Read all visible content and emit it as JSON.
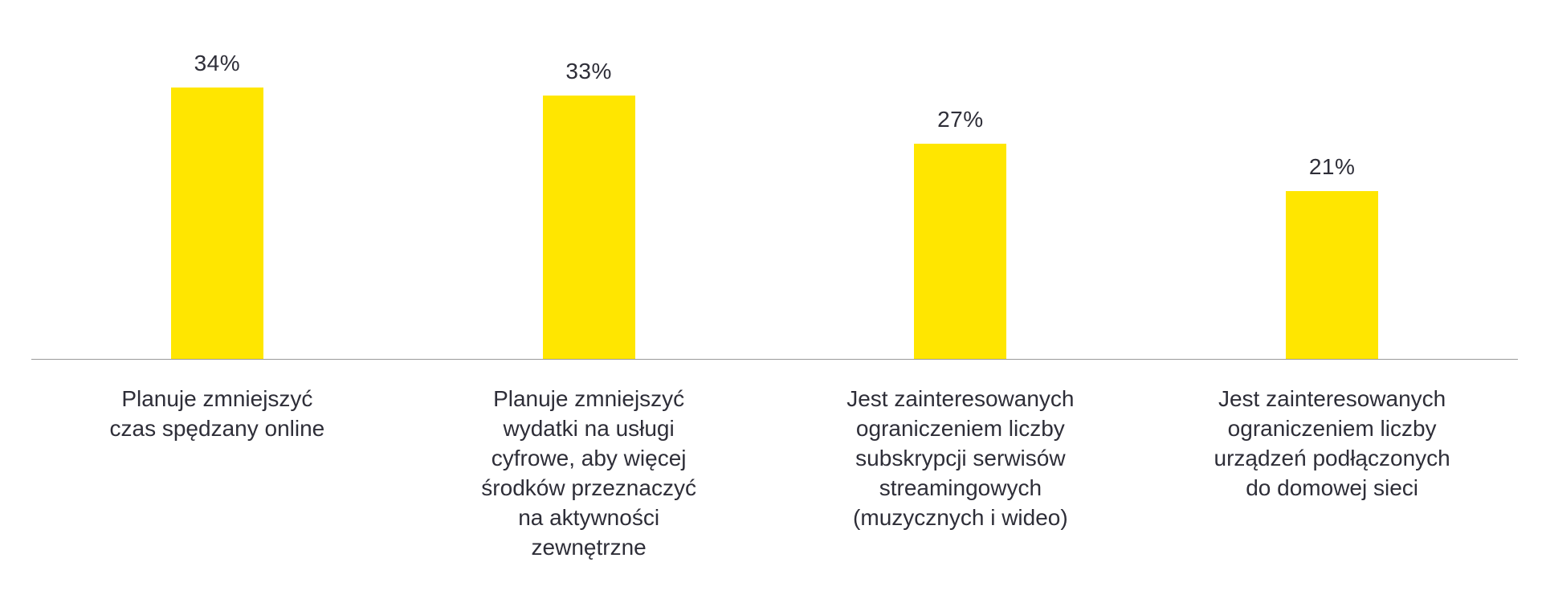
{
  "chart_data": {
    "type": "bar",
    "title": "",
    "categories": [
      "Planuje zmniejszyć\nczas spędzany online",
      "Planuje zmniejszyć\nwydatki na usługi\ncyfrowe, aby więcej\nśrodków przeznaczyć\nna aktywności\nzewnętrzne",
      "Jest zainteresowanych\nograniczeniem liczby\nsubskrypcji serwisów\nstreamingowych\n(muzycznych i wideo)",
      "Jest zainteresowanych\nograniczeniem liczby\nurządzeń podłączonych\ndo domowej sieci"
    ],
    "values": [
      34,
      33,
      27,
      21
    ],
    "value_labels": [
      "34%",
      "33%",
      "27%",
      "21%"
    ],
    "xlabel": "",
    "ylabel": "",
    "ylim": [
      0,
      45
    ],
    "grid": false,
    "legend": false,
    "bar_color": "#FFE600",
    "text_color": "#2E2E38",
    "axis_color": "#999999",
    "background": "#FFFFFF"
  }
}
